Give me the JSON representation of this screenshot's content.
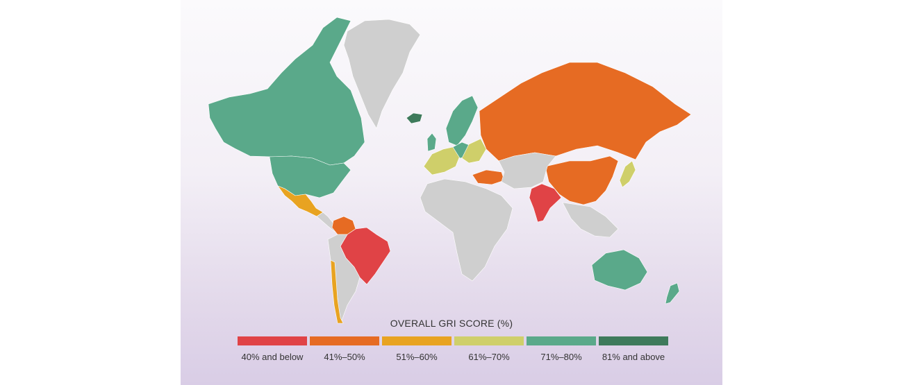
{
  "colors": {
    "no_data": "#cfcfcf",
    "band_40_below": "#e04346",
    "band_41_50": "#e66b23",
    "band_51_60": "#e8a321",
    "band_61_70": "#cfcf6a",
    "band_71_80": "#5aa98a",
    "band_81_above": "#3e7a5b"
  },
  "legend": {
    "title": "OVERALL GRI SCORE (%)",
    "items": [
      {
        "label": "40% and below",
        "color": "#e04346"
      },
      {
        "label": "41%–50%",
        "color": "#e66b23"
      },
      {
        "label": "51%–60%",
        "color": "#e8a321"
      },
      {
        "label": "61%–70%",
        "color": "#cfcf6a"
      },
      {
        "label": "71%–80%",
        "color": "#5aa98a"
      },
      {
        "label": "81% and above",
        "color": "#3e7a5b"
      }
    ]
  }
}
